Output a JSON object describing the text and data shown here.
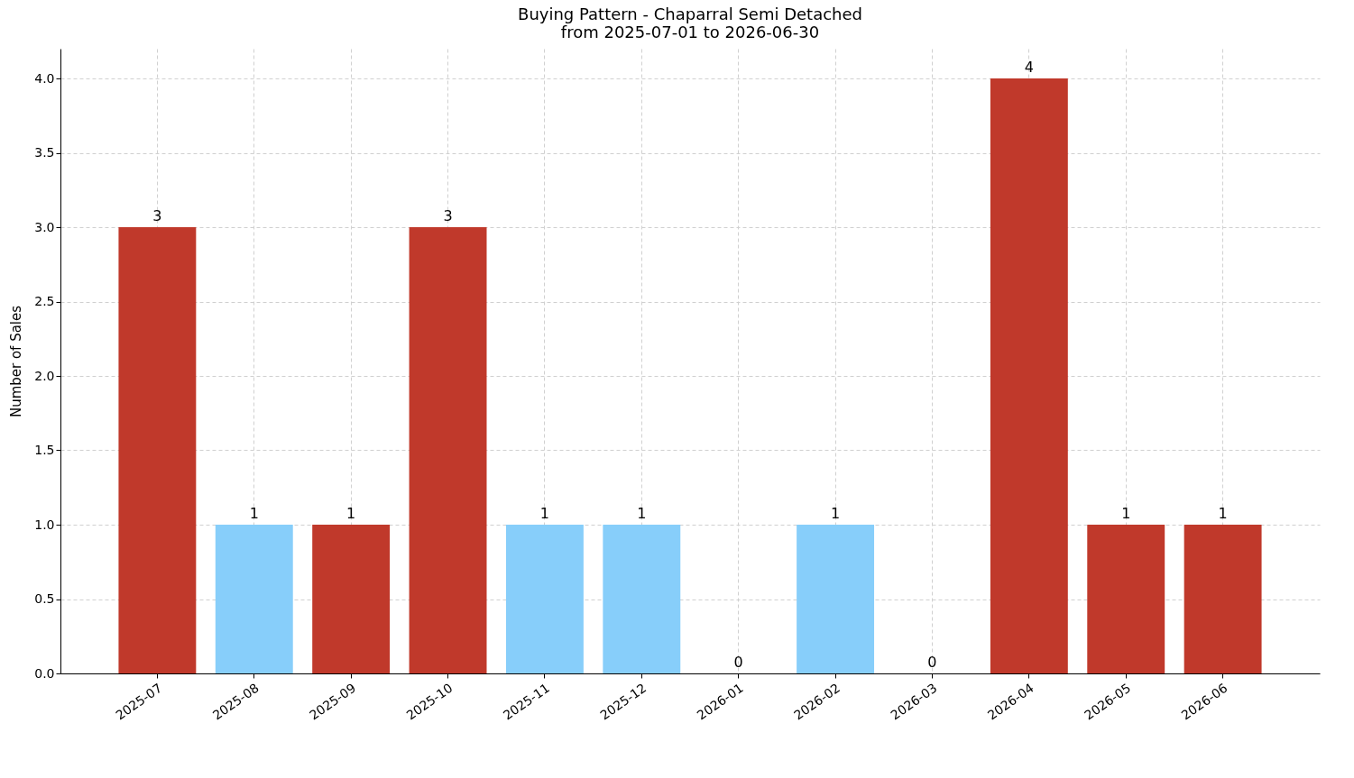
{
  "chart_data": {
    "type": "bar",
    "title": "Buying Pattern - Chaparral Semi Detached",
    "subtitle": "from 2025-07-01 to 2026-06-30",
    "ylabel": "Number of Sales",
    "categories": [
      "2025-07",
      "2025-08",
      "2025-09",
      "2025-10",
      "2025-11",
      "2025-12",
      "2026-01",
      "2026-02",
      "2026-03",
      "2026-04",
      "2026-05",
      "2026-06"
    ],
    "values": [
      3,
      1,
      1,
      3,
      1,
      1,
      0,
      1,
      0,
      4,
      1,
      1
    ],
    "colors": [
      "#c0392b",
      "#87cefa",
      "#c0392b",
      "#c0392b",
      "#87cefa",
      "#87cefa",
      "#87cefa",
      "#87cefa",
      "#87cefa",
      "#c0392b",
      "#c0392b",
      "#c0392b"
    ],
    "ylim": [
      0,
      4.2
    ],
    "yticks": [
      {
        "value": 0,
        "label": "0.0"
      },
      {
        "value": 0.5,
        "label": "0.5"
      },
      {
        "value": 1,
        "label": "1.0"
      },
      {
        "value": 1.5,
        "label": "1.5"
      },
      {
        "value": 2,
        "label": "2.0"
      },
      {
        "value": 2.5,
        "label": "2.5"
      },
      {
        "value": 3,
        "label": "3.0"
      },
      {
        "value": 3.5,
        "label": "3.5"
      },
      {
        "value": 4,
        "label": "4.0"
      }
    ],
    "grid": true,
    "data_labels": true
  }
}
